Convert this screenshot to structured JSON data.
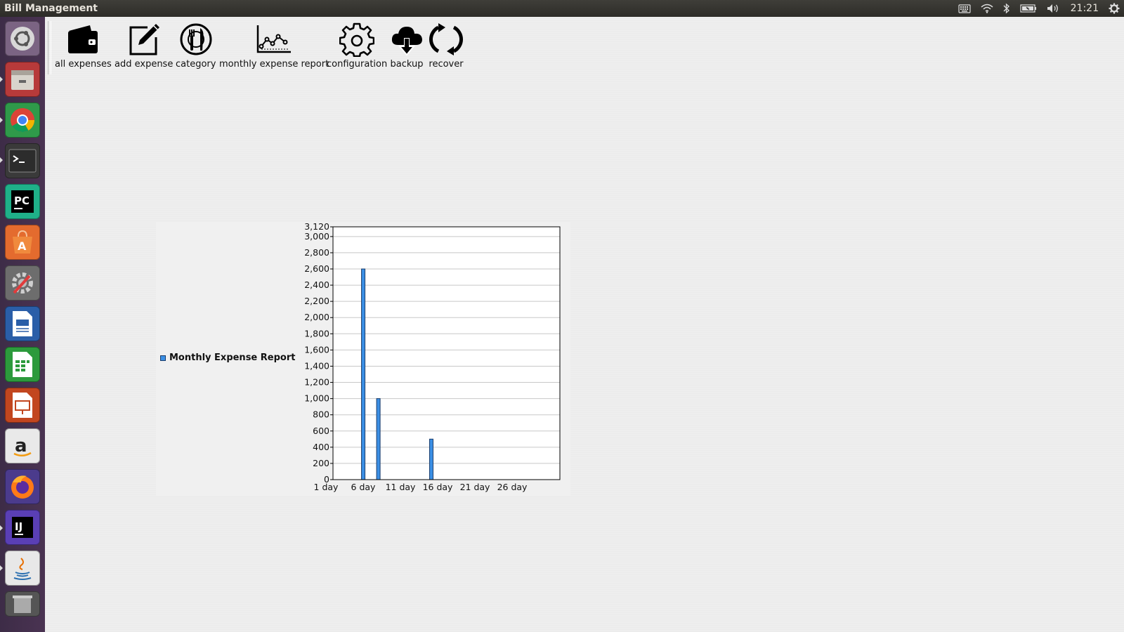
{
  "app": {
    "title": "Bill Management"
  },
  "tray": {
    "clock": "21:21"
  },
  "launcher": {
    "items": [
      {
        "name": "dash-home"
      },
      {
        "name": "files"
      },
      {
        "name": "chrome"
      },
      {
        "name": "terminal"
      },
      {
        "name": "pycharm"
      },
      {
        "name": "software-center"
      },
      {
        "name": "system-settings"
      },
      {
        "name": "writer"
      },
      {
        "name": "calc"
      },
      {
        "name": "impress"
      },
      {
        "name": "amazon"
      },
      {
        "name": "firefox"
      },
      {
        "name": "intellij"
      },
      {
        "name": "java"
      },
      {
        "name": "trash"
      }
    ]
  },
  "toolbar": {
    "all_expenses": "all expenses",
    "add_expense": "add expense",
    "category": "category",
    "monthly_report": "monthly expense report",
    "configuration": "configuration",
    "backup": "backup",
    "recover": "recover"
  },
  "chart_data": {
    "type": "bar",
    "title": "",
    "legend": [
      "Monthly Expense Report"
    ],
    "legend_position": "left",
    "x_tick_labels": [
      "1 day",
      "6 day",
      "11 day",
      "16 day",
      "21 day",
      "26 day"
    ],
    "x_range": [
      1,
      31
    ],
    "y_ticks": [
      0,
      200,
      400,
      600,
      800,
      1000,
      1200,
      1400,
      1600,
      1800,
      2000,
      2200,
      2400,
      2600,
      2800,
      3000,
      3120
    ],
    "y_tick_labels": [
      "0",
      "200",
      "400",
      "600",
      "800",
      "1,000",
      "1,200",
      "1,400",
      "1,600",
      "1,800",
      "2,000",
      "2,200",
      "2,400",
      "2,600",
      "2,800",
      "3,000",
      "3,120"
    ],
    "ylim": [
      0,
      3120
    ],
    "series": [
      {
        "name": "Monthly Expense Report",
        "color": "#3b8fe5",
        "points": [
          {
            "day": 5,
            "value": 2600
          },
          {
            "day": 7,
            "value": 1000
          },
          {
            "day": 14,
            "value": 500
          }
        ]
      }
    ],
    "grid": true
  },
  "colors": {
    "bar": "#3b8fe5",
    "bar_border": "#1a3c6b",
    "launcher_bg": "#432f4c"
  }
}
